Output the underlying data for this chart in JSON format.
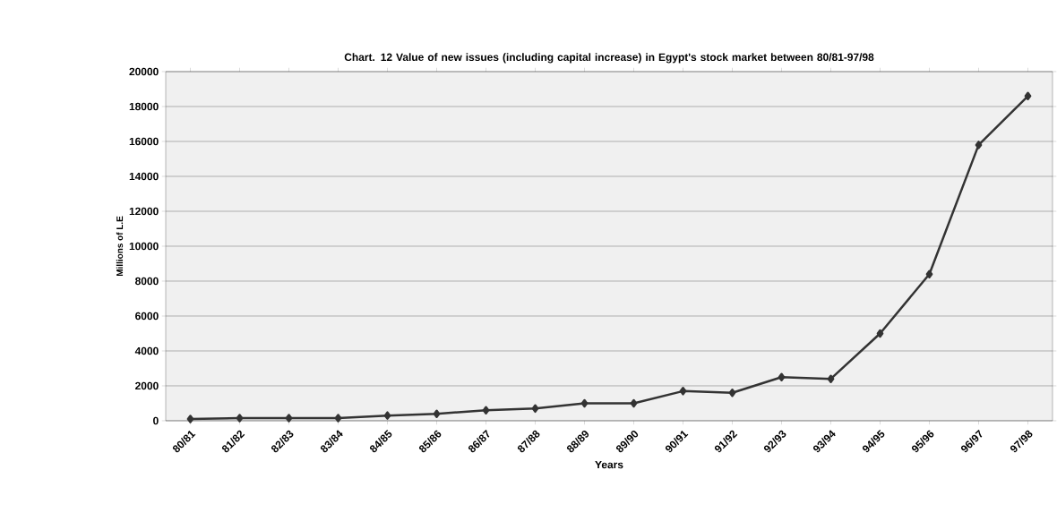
{
  "chart_data": {
    "type": "line",
    "title": "Chart. 12 Value of new issues (including capital increase) in Egypt's stock market between 80/81-97/98",
    "xlabel": "Years",
    "ylabel": "Millions of L.E",
    "categories": [
      "80/81",
      "81/82",
      "82/83",
      "83/84",
      "84/85",
      "85/86",
      "86/87",
      "87/88",
      "88/89",
      "89/90",
      "90/91",
      "91/92",
      "92/93",
      "93/94",
      "94/95",
      "95/96",
      "96/97",
      "97/98"
    ],
    "series": [
      {
        "color": "#333333",
        "values": [
          100,
          150,
          150,
          150,
          300,
          400,
          600,
          700,
          1000,
          1000,
          1700,
          1600,
          2500,
          2400,
          5000,
          8400,
          15800,
          18600
        ]
      }
    ],
    "ylim": [
      0,
      20000
    ],
    "yticks": [
      0,
      2000,
      4000,
      6000,
      8000,
      10000,
      12000,
      14000,
      16000,
      18000,
      20000
    ],
    "grid": "y",
    "marker": "diamond",
    "line_style": "solid"
  }
}
